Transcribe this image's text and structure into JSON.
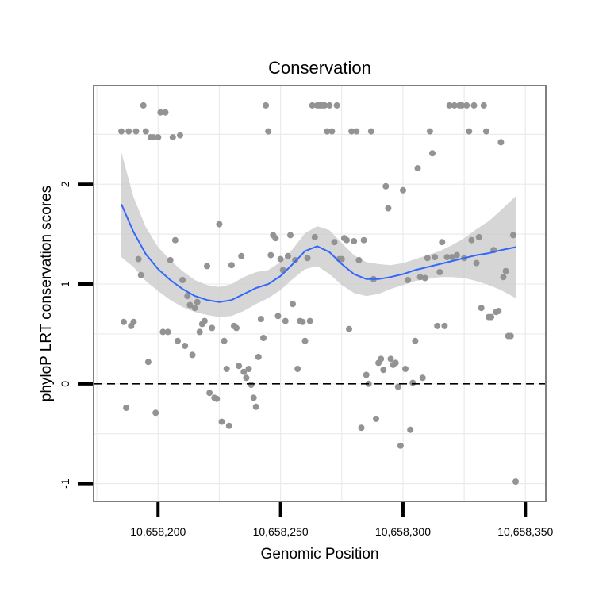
{
  "chart_data": {
    "type": "scatter",
    "title": "Conservation",
    "xlabel": "Genomic Position",
    "ylabel": "phyloP LRT conservation scores",
    "xlim": [
      10658174,
      10658358
    ],
    "ylim": [
      -1.17,
      2.98
    ],
    "x_ticks": [
      {
        "value": 10658200,
        "label": "10,658,200"
      },
      {
        "value": 10658250,
        "label": "10,658,250"
      },
      {
        "value": 10658300,
        "label": "10,658,300"
      },
      {
        "value": 10658350,
        "label": "10,658,350"
      }
    ],
    "y_ticks": [
      {
        "value": -1,
        "label": "-1"
      },
      {
        "value": 0,
        "label": "0"
      },
      {
        "value": 1,
        "label": "1"
      },
      {
        "value": 2,
        "label": "2"
      }
    ],
    "reference_line": {
      "y": 0,
      "style": "dashed"
    },
    "points": [
      [
        10658185,
        2.53
      ],
      [
        10658186,
        0.62
      ],
      [
        10658187,
        -0.24
      ],
      [
        10658188,
        2.53
      ],
      [
        10658189,
        0.58
      ],
      [
        10658190,
        0.62
      ],
      [
        10658191,
        2.53
      ],
      [
        10658192,
        1.25
      ],
      [
        10658193,
        1.09
      ],
      [
        10658194,
        2.79
      ],
      [
        10658195,
        2.53
      ],
      [
        10658196,
        0.22
      ],
      [
        10658197,
        2.47
      ],
      [
        10658198,
        2.47
      ],
      [
        10658199,
        -0.29
      ],
      [
        10658200,
        2.47
      ],
      [
        10658201,
        2.72
      ],
      [
        10658202,
        0.52
      ],
      [
        10658203,
        2.72
      ],
      [
        10658204,
        0.52
      ],
      [
        10658205,
        1.24
      ],
      [
        10658206,
        2.47
      ],
      [
        10658207,
        1.44
      ],
      [
        10658208,
        0.43
      ],
      [
        10658209,
        2.49
      ],
      [
        10658210,
        1.04
      ],
      [
        10658211,
        0.38
      ],
      [
        10658212,
        0.88
      ],
      [
        10658213,
        0.79
      ],
      [
        10658214,
        0.29
      ],
      [
        10658215,
        0.76
      ],
      [
        10658216,
        0.82
      ],
      [
        10658217,
        0.52
      ],
      [
        10658218,
        0.6
      ],
      [
        10658219,
        0.63
      ],
      [
        10658220,
        1.18
      ],
      [
        10658221,
        -0.09
      ],
      [
        10658222,
        0.56
      ],
      [
        10658223,
        -0.14
      ],
      [
        10658224,
        -0.15
      ],
      [
        10658225,
        1.6
      ],
      [
        10658226,
        -0.38
      ],
      [
        10658227,
        0.43
      ],
      [
        10658228,
        0.15
      ],
      [
        10658229,
        -0.42
      ],
      [
        10658230,
        1.19
      ],
      [
        10658231,
        0.58
      ],
      [
        10658232,
        0.56
      ],
      [
        10658233,
        0.18
      ],
      [
        10658234,
        1.28
      ],
      [
        10658235,
        0.12
      ],
      [
        10658236,
        0.06
      ],
      [
        10658237,
        0.15
      ],
      [
        10658238,
        -0.01
      ],
      [
        10658239,
        -0.14
      ],
      [
        10658240,
        -0.23
      ],
      [
        10658241,
        0.27
      ],
      [
        10658242,
        0.65
      ],
      [
        10658243,
        0.46
      ],
      [
        10658244,
        2.79
      ],
      [
        10658245,
        2.53
      ],
      [
        10658246,
        1.29
      ],
      [
        10658247,
        1.49
      ],
      [
        10658248,
        1.46
      ],
      [
        10658249,
        0.68
      ],
      [
        10658250,
        1.25
      ],
      [
        10658251,
        1.14
      ],
      [
        10658252,
        0.63
      ],
      [
        10658253,
        1.28
      ],
      [
        10658254,
        1.49
      ],
      [
        10658255,
        0.8
      ],
      [
        10658256,
        1.24
      ],
      [
        10658257,
        0.15
      ],
      [
        10658258,
        0.63
      ],
      [
        10658259,
        0.62
      ],
      [
        10658260,
        0.43
      ],
      [
        10658261,
        1.26
      ],
      [
        10658262,
        0.63
      ],
      [
        10658263,
        2.79
      ],
      [
        10658264,
        1.47
      ],
      [
        10658265,
        2.79
      ],
      [
        10658266,
        2.79
      ],
      [
        10658267,
        2.79
      ],
      [
        10658268,
        2.79
      ],
      [
        10658269,
        2.53
      ],
      [
        10658270,
        2.79
      ],
      [
        10658271,
        2.53
      ],
      [
        10658272,
        1.42
      ],
      [
        10658273,
        2.79
      ],
      [
        10658274,
        1.25
      ],
      [
        10658275,
        1.25
      ],
      [
        10658276,
        1.46
      ],
      [
        10658277,
        1.44
      ],
      [
        10658278,
        0.55
      ],
      [
        10658279,
        2.53
      ],
      [
        10658280,
        1.43
      ],
      [
        10658281,
        2.53
      ],
      [
        10658282,
        1.24
      ],
      [
        10658283,
        -0.44
      ],
      [
        10658284,
        1.44
      ],
      [
        10658285,
        0.09
      ],
      [
        10658286,
        0.0
      ],
      [
        10658287,
        2.53
      ],
      [
        10658288,
        1.05
      ],
      [
        10658289,
        -0.35
      ],
      [
        10658290,
        0.21
      ],
      [
        10658291,
        0.25
      ],
      [
        10658292,
        0.14
      ],
      [
        10658293,
        1.98
      ],
      [
        10658294,
        1.76
      ],
      [
        10658295,
        0.25
      ],
      [
        10658296,
        0.19
      ],
      [
        10658297,
        0.21
      ],
      [
        10658298,
        -0.03
      ],
      [
        10658299,
        -0.62
      ],
      [
        10658300,
        1.94
      ],
      [
        10658301,
        0.15
      ],
      [
        10658302,
        1.04
      ],
      [
        10658303,
        -0.46
      ],
      [
        10658304,
        0.01
      ],
      [
        10658305,
        0.43
      ],
      [
        10658306,
        2.16
      ],
      [
        10658307,
        1.07
      ],
      [
        10658308,
        0.06
      ],
      [
        10658309,
        1.06
      ],
      [
        10658310,
        1.26
      ],
      [
        10658311,
        2.53
      ],
      [
        10658312,
        2.31
      ],
      [
        10658313,
        1.27
      ],
      [
        10658314,
        0.58
      ],
      [
        10658315,
        1.12
      ],
      [
        10658316,
        1.42
      ],
      [
        10658317,
        0.58
      ],
      [
        10658318,
        1.27
      ],
      [
        10658319,
        2.79
      ],
      [
        10658320,
        1.27
      ],
      [
        10658321,
        2.79
      ],
      [
        10658322,
        1.29
      ],
      [
        10658323,
        2.79
      ],
      [
        10658324,
        2.79
      ],
      [
        10658325,
        1.26
      ],
      [
        10658326,
        2.79
      ],
      [
        10658327,
        2.53
      ],
      [
        10658328,
        1.44
      ],
      [
        10658329,
        2.79
      ],
      [
        10658330,
        1.21
      ],
      [
        10658331,
        1.47
      ],
      [
        10658332,
        0.76
      ],
      [
        10658333,
        2.79
      ],
      [
        10658334,
        2.53
      ],
      [
        10658335,
        0.67
      ],
      [
        10658336,
        0.67
      ],
      [
        10658337,
        1.34
      ],
      [
        10658338,
        0.72
      ],
      [
        10658339,
        0.73
      ],
      [
        10658340,
        2.42
      ],
      [
        10658341,
        1.07
      ],
      [
        10658342,
        1.13
      ],
      [
        10658343,
        0.48
      ],
      [
        10658344,
        0.48
      ],
      [
        10658345,
        1.49
      ],
      [
        10658346,
        -0.98
      ]
    ],
    "smooth": {
      "x": [
        10658185,
        10658190,
        10658195,
        10658200,
        10658205,
        10658210,
        10658215,
        10658220,
        10658225,
        10658230,
        10658235,
        10658240,
        10658245,
        10658250,
        10658255,
        10658260,
        10658265,
        10658270,
        10658275,
        10658280,
        10658285,
        10658290,
        10658295,
        10658300,
        10658305,
        10658310,
        10658315,
        10658320,
        10658325,
        10658330,
        10658335,
        10658340,
        10658346
      ],
      "y": [
        1.8,
        1.52,
        1.3,
        1.15,
        1.04,
        0.95,
        0.88,
        0.84,
        0.82,
        0.84,
        0.9,
        0.96,
        1.0,
        1.08,
        1.2,
        1.33,
        1.38,
        1.32,
        1.2,
        1.1,
        1.05,
        1.05,
        1.07,
        1.1,
        1.14,
        1.17,
        1.2,
        1.23,
        1.26,
        1.29,
        1.31,
        1.34,
        1.37
      ],
      "lower": [
        1.27,
        1.17,
        1.03,
        0.93,
        0.84,
        0.77,
        0.72,
        0.69,
        0.67,
        0.68,
        0.73,
        0.8,
        0.86,
        0.94,
        1.05,
        1.15,
        1.18,
        1.1,
        0.99,
        0.91,
        0.88,
        0.9,
        0.95,
        0.99,
        1.03,
        1.05,
        1.07,
        1.07,
        1.06,
        1.03,
        0.99,
        0.94,
        0.86
      ],
      "upper": [
        2.32,
        1.87,
        1.57,
        1.37,
        1.24,
        1.13,
        1.04,
        0.99,
        0.97,
        1.0,
        1.07,
        1.12,
        1.14,
        1.22,
        1.35,
        1.51,
        1.58,
        1.54,
        1.41,
        1.29,
        1.22,
        1.2,
        1.19,
        1.21,
        1.25,
        1.29,
        1.33,
        1.39,
        1.46,
        1.55,
        1.63,
        1.74,
        1.88
      ]
    },
    "colors": {
      "points": "#939393",
      "smooth_line": "#3366FF",
      "ribbon": "#cccccc",
      "panel_border": "#7f7f7f",
      "grid": "#ebebeb",
      "reference_line": "#000000"
    }
  }
}
